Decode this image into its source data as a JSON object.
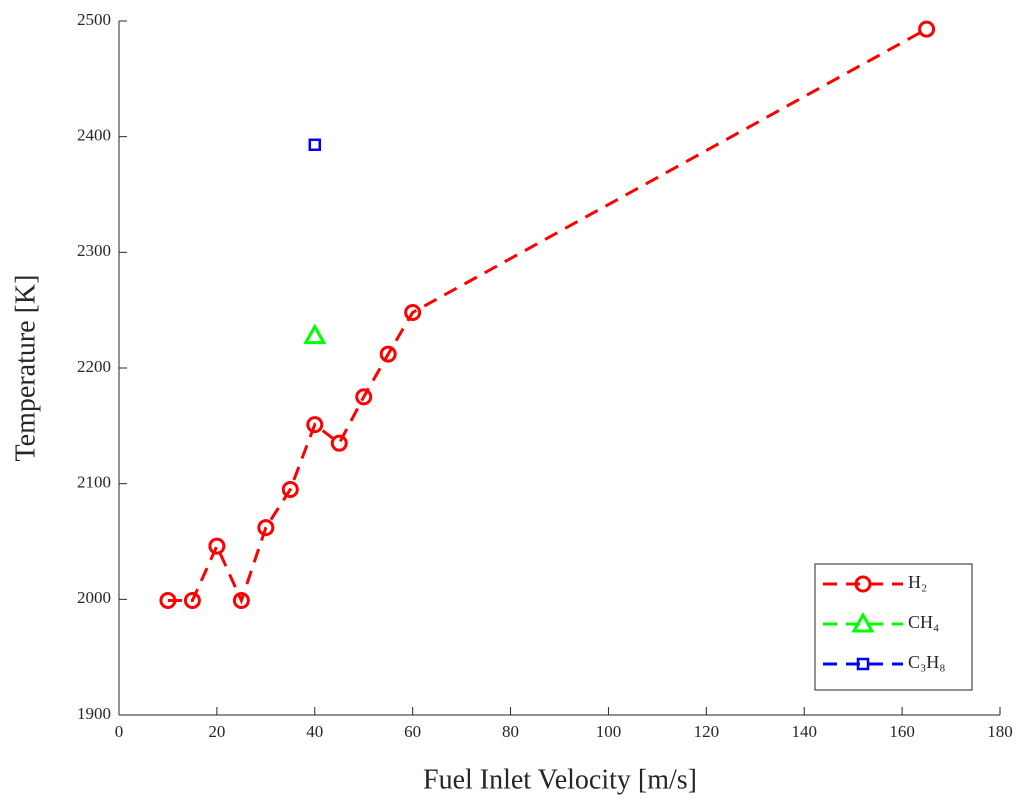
{
  "chart_data": {
    "type": "line",
    "xlabel": "Fuel Inlet Velocity [m/s]",
    "ylabel": "Temperature [K]",
    "xlim": [
      0,
      180
    ],
    "xticks": [
      0,
      20,
      40,
      60,
      80,
      100,
      120,
      140,
      160,
      180
    ],
    "ylim": [
      1900,
      2500
    ],
    "yticks": [
      1900,
      2000,
      2100,
      2200,
      2300,
      2400,
      2500
    ],
    "legend": "lower right",
    "linestyle": "dashed",
    "series": [
      {
        "name": "H₂",
        "color": "#ff0000",
        "marker": "circle",
        "x": [
          10,
          15,
          20,
          25,
          30,
          35,
          40,
          45,
          50,
          55,
          60,
          165
        ],
        "values": [
          1999,
          1999,
          2046,
          1999,
          2062,
          2095,
          2151,
          2135,
          2175,
          2212,
          2248,
          2493
        ]
      },
      {
        "name": "CH₄",
        "color": "#00ff00",
        "marker": "triangle",
        "x": [
          40
        ],
        "values": [
          2228
        ]
      },
      {
        "name": "C₃H₈",
        "color": "#0000ff",
        "marker": "square",
        "x": [
          40
        ],
        "values": [
          2393
        ]
      }
    ]
  }
}
